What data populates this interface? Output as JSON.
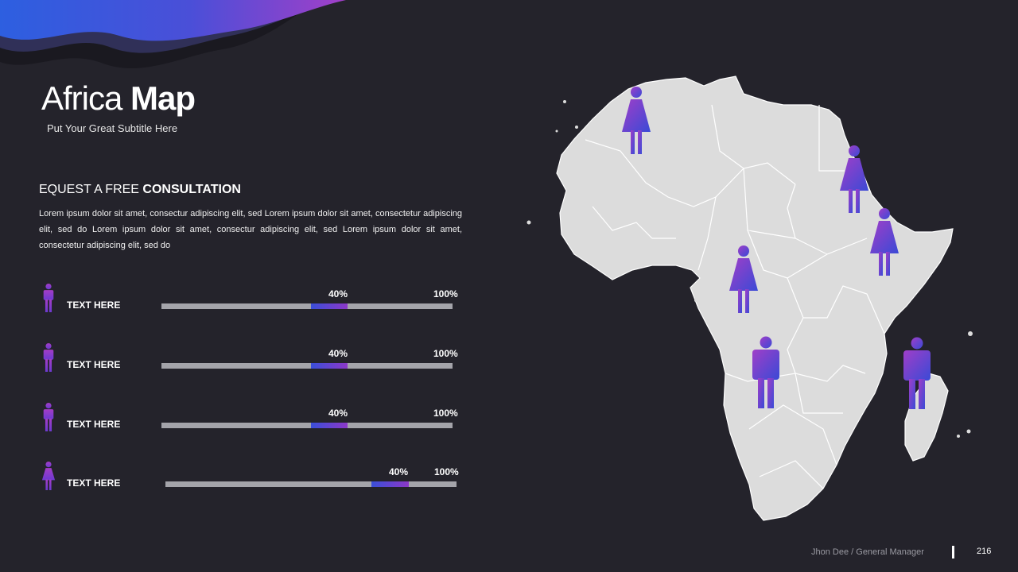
{
  "title": {
    "light": "Africa",
    "bold": "Map"
  },
  "subtitle": "Put Your Great Subtitle Here",
  "cta": {
    "light": "EQUEST A FREE",
    "bold": "CONSULTATION"
  },
  "body_text": "Lorem ipsum dolor sit amet, consectur adipiscing elit, sed Lorem ipsum dolor sit amet, consectetur adipiscing elit, sed do Lorem ipsum dolor sit amet, consectur adipiscing elit, sed Lorem ipsum dolor sit amet, consectetur adipiscing elit, sed do",
  "rows": [
    {
      "label": "TEXT HERE",
      "percent_label": "40%",
      "max_label": "100%",
      "figure": "male-icon"
    },
    {
      "label": "TEXT HERE",
      "percent_label": "40%",
      "max_label": "100%",
      "figure": "male-icon"
    },
    {
      "label": "TEXT HERE",
      "percent_label": "40%",
      "max_label": "100%",
      "figure": "male-icon"
    },
    {
      "label": "TEXT HERE",
      "percent_label": "40%",
      "max_label": "100%",
      "figure": "female-icon"
    }
  ],
  "map": {
    "region": "Africa",
    "markers": [
      "female-icon",
      "female-icon",
      "female-icon",
      "female-icon",
      "male-icon",
      "male-icon"
    ]
  },
  "footer": {
    "name": "Jhon Dee  / General  Manager",
    "page": "216"
  },
  "colors": {
    "background": "#24232b",
    "accent_start": "#3a4fd8",
    "accent_end": "#8c38c8",
    "map_fill": "#dcdcdc",
    "track": "#a4a4aa"
  }
}
